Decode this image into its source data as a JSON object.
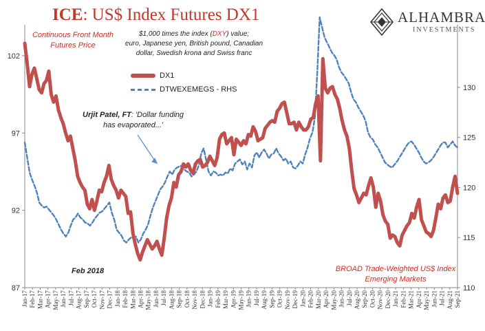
{
  "title_strong": "ICE",
  "title_rest": ": US$ Index Futures DX1",
  "subtitle_left": [
    "Continuous  Front Month",
    "Futures Price"
  ],
  "subtitle_center": [
    "$1,000 times the index (",
    "DXY",
    ") value;",
    "euro, Japanese yen, British pound, Canadian",
    "dollar, Swedish krona and Swiss franc"
  ],
  "annotation_patel_bold": "Urjit Patel, FT",
  "annotation_patel_rest": ": 'Dollar funding",
  "annotation_patel_line2": "has evaporated...'",
  "annotation_feb2018": "Feb 2018",
  "rhs_note": [
    "BROAD Trade-Weighted US$ Index",
    "Emerging Markets"
  ],
  "logo": {
    "name": "ALHAMBRA",
    "sub": "INVESTMENTS"
  },
  "colors": {
    "dx1": "#c0504d",
    "em": "#4f81bd",
    "title": "#c0392b",
    "note": "#d62a1e"
  },
  "chart_data": {
    "type": "line",
    "series": [
      {
        "name": "DX1",
        "axis": "left",
        "style": "solid-thick",
        "values": [
          102.8,
          101.5,
          100.0,
          100.8,
          101.2,
          100.5,
          99.8,
          99.6,
          100.2,
          100.4,
          101.0,
          99.5,
          99.0,
          99.4,
          98.5,
          98.0,
          97.6,
          97.0,
          96.5,
          96.8,
          96.0,
          95.2,
          94.2,
          93.8,
          93.5,
          93.3,
          92.4,
          92.1,
          92.7,
          92.0,
          92.6,
          93.3,
          93.2,
          93.8,
          94.2,
          94.9,
          94.0,
          93.6,
          93.3,
          92.8,
          93.3,
          93.1,
          92.9,
          91.8,
          91.9,
          90.5,
          89.8,
          89.2,
          88.8,
          89.3,
          89.7,
          90.1,
          89.8,
          89.5,
          89.7,
          90.0,
          89.5,
          89.1,
          90.2,
          91.5,
          92.3,
          92.8,
          93.8,
          93.5,
          94.3,
          94.5,
          95.0,
          94.8,
          95.0,
          94.6,
          94.4,
          95.0,
          95.2,
          95.3,
          94.8,
          94.9,
          95.1,
          95.5,
          95.2,
          94.9,
          95.4,
          96.6,
          96.9,
          97.0,
          96.3,
          96.5,
          96.7,
          95.6,
          96.6,
          96.4,
          96.2,
          96.5,
          96.3,
          96.9,
          96.8,
          97.4,
          97.1,
          96.5,
          96.6,
          96.7,
          97.3,
          97.5,
          97.7,
          97.8,
          97.7,
          98.4,
          98.6,
          98.9,
          99.0,
          98.3,
          97.6,
          97.6,
          97.7,
          97.2,
          97.7,
          97.4,
          97.2,
          97.2,
          97.4,
          97.9,
          98.0,
          98.9,
          99.4,
          95.2,
          101.8,
          99.9,
          99.6,
          99.9,
          100.0,
          99.5,
          99.2,
          98.6,
          97.8,
          97.2,
          96.8,
          96.0,
          94.6,
          93.4,
          93.0,
          92.5,
          92.8,
          93.1,
          93.0,
          93.6,
          94.1,
          93.5,
          92.2,
          93.1,
          92.6,
          91.7,
          91.3,
          91.1,
          90.2,
          90.4,
          90.3,
          89.9,
          89.7,
          90.4,
          90.7,
          91.0,
          91.2,
          91.8,
          91.5,
          92.2,
          92.7,
          91.4,
          91.0,
          90.6,
          90.5,
          90.3,
          90.7,
          91.5,
          92.4,
          92.1,
          92.8,
          93.0,
          92.5,
          92.6,
          93.5,
          94.2,
          93.1
        ]
      },
      {
        "name": "DTWEXEMEGS - RHS",
        "axis": "right",
        "style": "dashed",
        "values": [
          124.5,
          123.0,
          121.5,
          120.8,
          120.2,
          119.5,
          118.5,
          118.2,
          118.0,
          118.1,
          117.8,
          117.5,
          117.2,
          116.8,
          116.3,
          115.8,
          115.4,
          115.1,
          115.5,
          116.2,
          116.8,
          117.0,
          117.4,
          117.0,
          116.8,
          116.5,
          116.4,
          116.2,
          116.5,
          116.9,
          117.2,
          117.5,
          117.6,
          117.9,
          118.2,
          118.5,
          117.5,
          116.8,
          115.8,
          115.5,
          115.2,
          114.7,
          114.5,
          114.8,
          115.0,
          114.9,
          115.1,
          114.5,
          114.8,
          115.4,
          115.8,
          116.3,
          117.2,
          118.0,
          118.6,
          119.2,
          119.8,
          120.1,
          120.5,
          121.1,
          121.6,
          121.3,
          121.8,
          122.0,
          122.1,
          122.2,
          121.8,
          121.6,
          121.5,
          121.1,
          121.3,
          121.6,
          122.2,
          123.4,
          123.9,
          122.8,
          121.6,
          121.2,
          121.6,
          121.5,
          121.2,
          121.3,
          121.2,
          121.5,
          121.4,
          121.9,
          121.7,
          122.4,
          122.6,
          122.8,
          122.3,
          122.6,
          121.8,
          122.4,
          122.0,
          123.2,
          123.5,
          123.0,
          123.5,
          123.8,
          123.4,
          122.9,
          123.3,
          123.4,
          123.9,
          123.4,
          123.1,
          122.7,
          122.9,
          122.4,
          122.6,
          122.0,
          121.9,
          122.2,
          122.6,
          122.4,
          123.3,
          124.0,
          124.9,
          125.5,
          127.0,
          131.5,
          137.0,
          136.0,
          135.0,
          134.5,
          134.0,
          133.5,
          133.2,
          132.8,
          132.0,
          131.5,
          131.2,
          130.8,
          130.4,
          129.5,
          128.8,
          128.5,
          128.0,
          127.6,
          127.2,
          126.6,
          125.5,
          125.0,
          124.8,
          124.3,
          124.0,
          123.5,
          123.0,
          122.5,
          122.3,
          122.1,
          122.0,
          122.3,
          122.6,
          123.0,
          123.4,
          123.8,
          124.2,
          124.5,
          124.6,
          124.3,
          123.9,
          123.5,
          123.0,
          122.6,
          122.4,
          122.5,
          122.7,
          123.0,
          123.4,
          123.8,
          124.2,
          124.5,
          124.5,
          124.0,
          124.3,
          124.6,
          124.2,
          124.0
        ]
      }
    ],
    "x_labels": [
      "Jan-17",
      "Feb-17",
      "Mar-17",
      "Apr-17",
      "May-17",
      "Jun-17",
      "Jul-17",
      "Aug-17",
      "Sep-17",
      "Oct-17",
      "Nov-17",
      "Dec-17",
      "Jan-18",
      "Feb-18",
      "Mar-18",
      "Apr-18",
      "May-18",
      "Jun-18",
      "Jul-18",
      "Aug-18",
      "Sep-18",
      "Oct-18",
      "Nov-18",
      "Dec-18",
      "Jan-19",
      "Feb-19",
      "Mar-19",
      "Apr-19",
      "May-19",
      "Jun-19",
      "Jul-19",
      "Aug-19",
      "Sep-19",
      "Oct-19",
      "Nov-19",
      "Dec-19",
      "Jan-20",
      "Feb-20",
      "Mar-20",
      "Apr-20",
      "May-20",
      "Jun-20",
      "Jul-20",
      "Aug-20",
      "Sep-20",
      "Oct-20",
      "Nov-20",
      "Dec-20",
      "Jan-21",
      "Feb-21",
      "Mar-21",
      "Apr-21",
      "May-21",
      "Jun-21",
      "Jul-21",
      "Aug-21",
      "Sep-21"
    ],
    "y_left": {
      "ticks": [
        87,
        92,
        97,
        102
      ],
      "range": [
        87,
        104
      ]
    },
    "y_right": {
      "ticks": [
        110,
        115,
        120,
        125,
        130
      ],
      "range": [
        110,
        136.25
      ]
    },
    "grid": false,
    "legend": "top-left"
  }
}
